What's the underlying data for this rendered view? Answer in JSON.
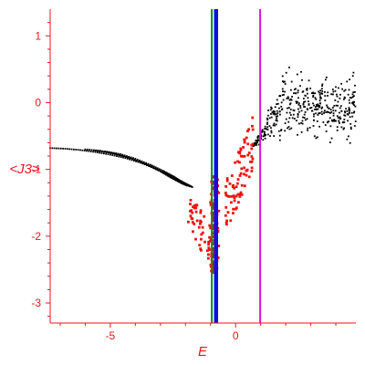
{
  "chart_data": {
    "type": "scatter",
    "title": "",
    "xlabel": "E",
    "ylabel": "<J3>",
    "xlim": [
      -7.4,
      4.8
    ],
    "ylim": [
      -3.3,
      1.4
    ],
    "x_ticks": [
      -5,
      0
    ],
    "y_ticks": [
      1,
      0,
      -1,
      -2,
      -3
    ],
    "grid": false,
    "legend": "none",
    "colors": {
      "axes": "#e8161b",
      "black_points": "#000000",
      "red_points": "#ee1111",
      "green_line": "#0a8a22",
      "blue_line": "#1010dd",
      "magenta_line": "#dd11dd"
    },
    "vertical_lines": [
      {
        "color": "green_line",
        "x": -0.95
      },
      {
        "color": "blue_line",
        "x": -0.78
      },
      {
        "color": "magenta_line",
        "x": 0.98
      }
    ],
    "point_sets": [
      {
        "color": "black_points",
        "kind": "curve",
        "x": [
          -7.4,
          -6.8,
          -6.2,
          -5.6,
          -5.0,
          -4.4,
          -3.8,
          -3.2,
          -2.7,
          -2.3,
          -2.0
        ],
        "y": [
          -0.68,
          -0.69,
          -0.71,
          -0.74,
          -0.78,
          -0.83,
          -0.9,
          -0.99,
          -1.08,
          -1.17,
          -1.22
        ]
      },
      {
        "color": "black_points",
        "kind": "curve",
        "x": [
          -6.0,
          -5.4,
          -4.8,
          -4.2,
          -3.6,
          -3.0,
          -2.6,
          -2.2,
          -1.9
        ],
        "y": [
          -0.7,
          -0.72,
          -0.77,
          -0.83,
          -0.92,
          -1.03,
          -1.12,
          -1.2,
          -1.25
        ]
      },
      {
        "color": "black_points",
        "kind": "curve",
        "x": [
          -5.6,
          -5.0,
          -4.4,
          -3.8,
          -3.2,
          -2.7,
          -2.3,
          -2.0,
          -1.8
        ],
        "y": [
          -0.72,
          -0.75,
          -0.81,
          -0.89,
          -0.98,
          -1.08,
          -1.16,
          -1.22,
          -1.26
        ]
      },
      {
        "color": "black_points",
        "kind": "curve",
        "x": [
          -5.2,
          -4.6,
          -4.0,
          -3.4,
          -2.9,
          -2.5,
          -2.2,
          -1.9,
          -1.7
        ],
        "y": [
          -0.73,
          -0.77,
          -0.84,
          -0.93,
          -1.02,
          -1.1,
          -1.17,
          -1.23,
          -1.27
        ]
      },
      {
        "color": "black_points",
        "kind": "cloud",
        "x_range": [
          0.7,
          4.8
        ],
        "y_range": [
          -1.1,
          1.1
        ],
        "count": 420
      },
      {
        "color": "red_points",
        "kind": "cloud",
        "x_range": [
          -2.0,
          0.8
        ],
        "y_range": [
          -2.6,
          -0.05
        ],
        "count": 300
      }
    ]
  }
}
